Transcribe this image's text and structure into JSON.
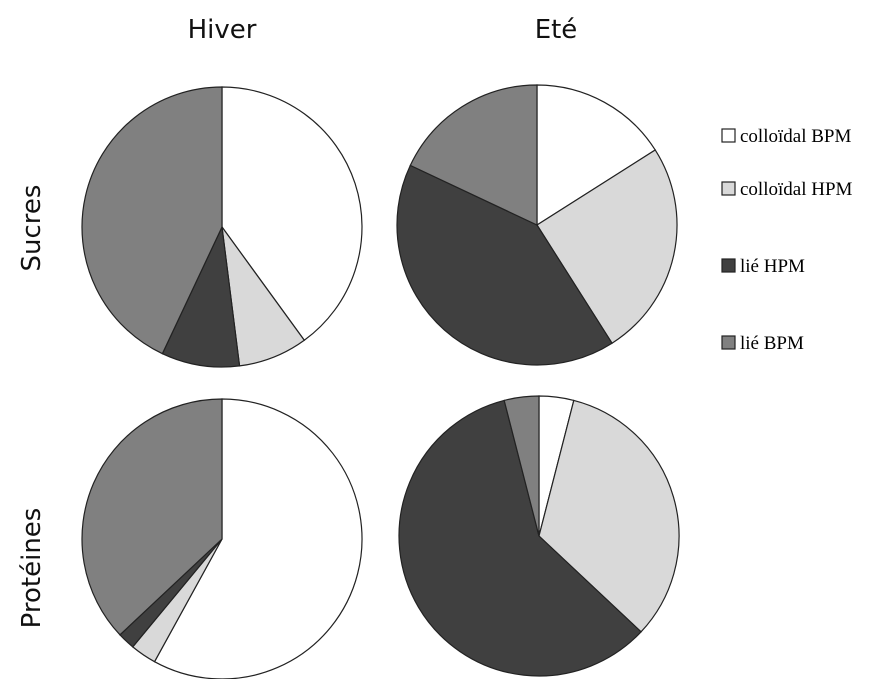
{
  "chart_data": [
    {
      "type": "pie",
      "column": "Hiver",
      "row": "Sucres",
      "categories": [
        "colloïdal BPM",
        "colloïdal HPM",
        "lié HPM",
        "lié BPM"
      ],
      "values": [
        40,
        8,
        9,
        43
      ]
    },
    {
      "type": "pie",
      "column": "Eté",
      "row": "Sucres",
      "categories": [
        "colloïdal BPM",
        "colloïdal HPM",
        "lié HPM",
        "lié BPM"
      ],
      "values": [
        16,
        25,
        41,
        18
      ]
    },
    {
      "type": "pie",
      "column": "Hiver",
      "row": "Protéines",
      "categories": [
        "colloïdal BPM",
        "colloïdal HPM",
        "lié HPM",
        "lié BPM"
      ],
      "values": [
        58,
        3,
        2,
        37
      ]
    },
    {
      "type": "pie",
      "column": "Eté",
      "row": "Protéines",
      "categories": [
        "colloïdal BPM",
        "colloïdal HPM",
        "lié HPM",
        "lié BPM"
      ],
      "values": [
        4,
        33,
        59,
        4
      ]
    }
  ],
  "columns": [
    "Hiver",
    "Eté"
  ],
  "rows": [
    "Sucres",
    "Protéines"
  ],
  "legend": {
    "position": "right",
    "items": [
      {
        "label": "colloïdal BPM",
        "color": "#ffffff"
      },
      {
        "label": "colloïdal HPM",
        "color": "#d9d9d9"
      },
      {
        "label": "lié HPM",
        "color": "#404040"
      },
      {
        "label": "lié BPM",
        "color": "#808080"
      }
    ]
  }
}
